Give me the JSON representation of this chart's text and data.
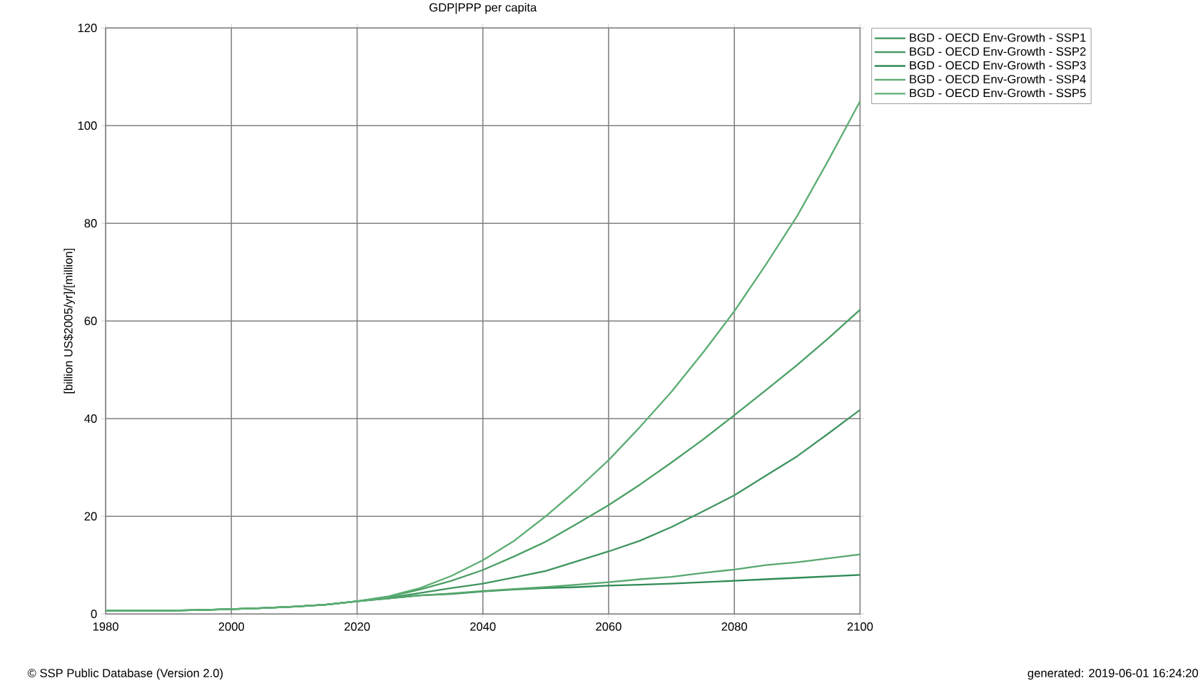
{
  "chart_data": {
    "type": "line",
    "title": "GDP|PPP per capita",
    "ylabel": "[billion US$2005/yr]/[million]",
    "x": [
      1980,
      1985,
      1990,
      1995,
      2000,
      2005,
      2010,
      2015,
      2020,
      2025,
      2030,
      2035,
      2040,
      2045,
      2050,
      2055,
      2060,
      2065,
      2070,
      2075,
      2080,
      2085,
      2090,
      2095,
      2100
    ],
    "series": [
      {
        "name": "BGD - OECD Env-Growth - SSP1",
        "color": "#4a9f64",
        "values": [
          0.7,
          0.7,
          0.7,
          0.8,
          1.0,
          1.2,
          1.5,
          1.9,
          2.6,
          3.5,
          5,
          6.8,
          9,
          11.8,
          14.8,
          18.5,
          22.3,
          26.5,
          31,
          35.7,
          40.7,
          45.8,
          51,
          56.5,
          62.3
        ]
      },
      {
        "name": "BGD - OECD Env-Growth - SSP2",
        "color": "#3f9560",
        "values": [
          0.7,
          0.7,
          0.7,
          0.8,
          1.0,
          1.2,
          1.5,
          1.9,
          2.6,
          3.3,
          4.3,
          5.3,
          6.2,
          7.5,
          8.8,
          10.8,
          12.8,
          15,
          17.8,
          21,
          24.3,
          28.3,
          32.3,
          37,
          41.8
        ]
      },
      {
        "name": "BGD - OECD Env-Growth - SSP3",
        "color": "#2e8b57",
        "values": [
          0.7,
          0.7,
          0.7,
          0.8,
          1.0,
          1.2,
          1.5,
          1.9,
          2.6,
          3.2,
          3.8,
          4.1,
          4.6,
          5,
          5.3,
          5.5,
          5.8,
          6,
          6.2,
          6.5,
          6.8,
          7.1,
          7.4,
          7.7,
          8.0
        ]
      },
      {
        "name": "BGD - OECD Env-Growth - SSP4",
        "color": "#58a86e",
        "values": [
          0.7,
          0.7,
          0.7,
          0.8,
          1.0,
          1.2,
          1.5,
          1.9,
          2.6,
          3.2,
          3.8,
          4.2,
          4.7,
          5.1,
          5.5,
          6,
          6.5,
          7.1,
          7.6,
          8.4,
          9.1,
          10,
          10.6,
          11.4,
          12.2
        ]
      },
      {
        "name": "BGD - OECD Env-Growth - SSP5",
        "color": "#5cae74",
        "values": [
          0.7,
          0.7,
          0.7,
          0.8,
          1.0,
          1.2,
          1.5,
          1.9,
          2.6,
          3.6,
          5.3,
          7.8,
          11,
          15,
          20,
          25.5,
          31.5,
          38.3,
          45.5,
          53.5,
          62,
          71.5,
          81.5,
          93,
          105
        ]
      }
    ],
    "xlim": [
      1980,
      2100
    ],
    "ylim": [
      0,
      120
    ],
    "xticks": [
      1980,
      2000,
      2020,
      2040,
      2060,
      2080,
      2100
    ],
    "yticks": [
      0,
      20,
      40,
      60,
      80,
      100,
      120
    ],
    "grid": true,
    "legend": "top right outside",
    "annotations": [
      "© SSP Public Database (Version 2.0)",
      "generated: 2019-06-01 16:24:20"
    ]
  }
}
